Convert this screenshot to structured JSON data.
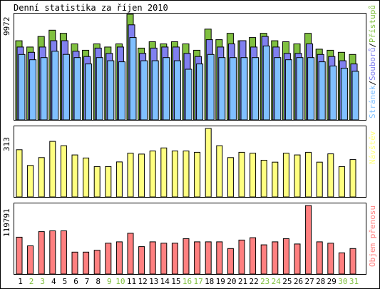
{
  "title": "Denní statistika za říjen 2010",
  "colors": {
    "hits": "#80c040",
    "files": "#8080f0",
    "pages": "#80c0ff",
    "visits": "#ffff80",
    "volume": "#ff8080",
    "weekend": "#80c040",
    "weekday": "#000000"
  },
  "chart_data": [
    {
      "type": "bar",
      "panel": "top",
      "max_label": "9972",
      "legend_parts": [
        "Stránek",
        "Souborů",
        "Přístupů"
      ],
      "legend_separator": "/",
      "ylim": [
        0,
        9972
      ],
      "categories": [
        "1",
        "2",
        "3",
        "4",
        "5",
        "6",
        "7",
        "8",
        "9",
        "10",
        "11",
        "12",
        "13",
        "14",
        "15",
        "16",
        "17",
        "18",
        "19",
        "20",
        "21",
        "22",
        "23",
        "24",
        "25",
        "26",
        "27",
        "28",
        "29",
        "30",
        "31"
      ],
      "weekend_days": [
        "2",
        "3",
        "9",
        "10",
        "16",
        "17",
        "23",
        "24",
        "30",
        "31"
      ],
      "series": [
        {
          "name": "Přístupů",
          "values": [
            7474,
            6877,
            7875,
            8472,
            8174,
            7176,
            6578,
            7176,
            6877,
            7176,
            9972,
            6778,
            7375,
            7176,
            7375,
            7176,
            6578,
            8572,
            7575,
            8174,
            7474,
            7774,
            8174,
            7474,
            7375,
            7176,
            8174,
            6679,
            6578,
            6379,
            6179
          ]
        },
        {
          "name": "Souborů",
          "values": [
            6878,
            6380,
            6878,
            7476,
            7476,
            6480,
            5982,
            6778,
            6280,
            6878,
            8972,
            6280,
            6779,
            6878,
            6878,
            6280,
            5982,
            7575,
            6878,
            7177,
            7476,
            6878,
            7875,
            6878,
            6280,
            6280,
            7177,
            6181,
            5982,
            5583,
            5284
          ]
        },
        {
          "name": "Stránek",
          "values": [
            6179,
            5683,
            5883,
            6481,
            6183,
            5883,
            5284,
            5883,
            5583,
            5484,
            7775,
            5584,
            5584,
            5883,
            5584,
            4785,
            5284,
            6181,
            5883,
            5883,
            5883,
            5883,
            6979,
            5883,
            5683,
            5883,
            5883,
            5484,
            5086,
            4886,
            4587
          ]
        }
      ]
    },
    {
      "type": "bar",
      "panel": "middle",
      "max_label": "313",
      "legend": "Návštěv",
      "ylim": [
        0,
        313
      ],
      "categories": [
        "1",
        "2",
        "3",
        "4",
        "5",
        "6",
        "7",
        "8",
        "9",
        "10",
        "11",
        "12",
        "13",
        "14",
        "15",
        "16",
        "17",
        "18",
        "19",
        "20",
        "21",
        "22",
        "23",
        "24",
        "25",
        "26",
        "27",
        "28",
        "29",
        "30",
        "31"
      ],
      "values": [
        216,
        144,
        180,
        254,
        234,
        192,
        178,
        139,
        139,
        160,
        200,
        196,
        210,
        224,
        210,
        210,
        204,
        313,
        234,
        180,
        204,
        200,
        168,
        159,
        200,
        192,
        204,
        159,
        197,
        139,
        171
      ]
    },
    {
      "type": "bar",
      "panel": "bottom",
      "max_label": "119791",
      "legend": "Objem přenosu",
      "ylim": [
        0,
        119791
      ],
      "categories": [
        "1",
        "2",
        "3",
        "4",
        "5",
        "6",
        "7",
        "8",
        "9",
        "10",
        "11",
        "12",
        "13",
        "14",
        "15",
        "16",
        "17",
        "18",
        "19",
        "20",
        "21",
        "22",
        "23",
        "24",
        "25",
        "26",
        "27",
        "28",
        "29",
        "30",
        "31"
      ],
      "values": [
        64450,
        49350,
        74100,
        75450,
        75450,
        38370,
        38370,
        41520,
        53850,
        56250,
        71300,
        47890,
        56250,
        53850,
        53850,
        61910,
        56250,
        56250,
        56250,
        44530,
        59410,
        63460,
        51000,
        56250,
        61910,
        52540,
        119791,
        56250,
        53850,
        37030,
        44530
      ]
    }
  ]
}
